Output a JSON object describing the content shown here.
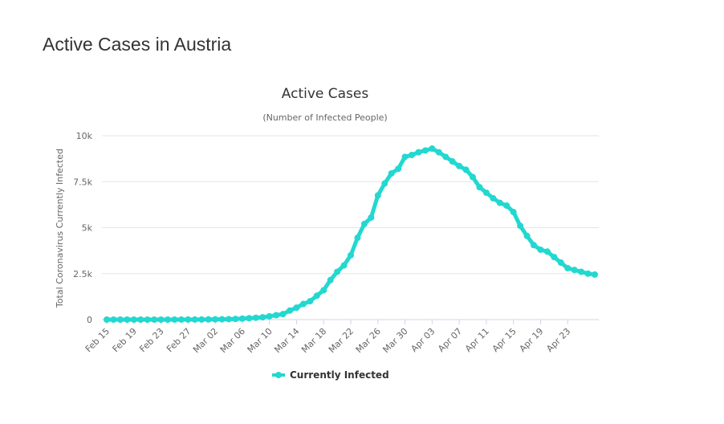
{
  "page_title": "Active Cases in Austria",
  "chart_data": {
    "type": "line",
    "title": "Active Cases",
    "subtitle": "(Number of Infected People)",
    "y_label": "Total Coronavirus Currently Infected",
    "categories": [
      "Feb 15",
      null,
      null,
      null,
      "Feb 19",
      null,
      null,
      null,
      "Feb 23",
      null,
      null,
      null,
      "Feb 27",
      null,
      null,
      null,
      "Mar 02",
      null,
      null,
      null,
      "Mar 06",
      null,
      null,
      null,
      "Mar 10",
      null,
      null,
      null,
      "Mar 14",
      null,
      null,
      null,
      "Mar 18",
      null,
      null,
      null,
      "Mar 22",
      null,
      null,
      null,
      "Mar 26",
      null,
      null,
      null,
      "Mar 30",
      null,
      null,
      null,
      "Apr 03",
      null,
      null,
      null,
      "Apr 07",
      null,
      null,
      null,
      "Apr 11",
      null,
      null,
      null,
      "Apr 15",
      null,
      null,
      null,
      "Apr 19",
      null,
      null,
      null,
      "Apr 23",
      null,
      null,
      null,
      null
    ],
    "series": [
      {
        "name": "Currently Infected",
        "color": "#22d8d0",
        "values": [
          0,
          0,
          0,
          0,
          0,
          0,
          0,
          0,
          0,
          0,
          2,
          2,
          3,
          3,
          5,
          9,
          14,
          18,
          24,
          37,
          55,
          77,
          99,
          128,
          180,
          240,
          300,
          490,
          650,
          850,
          1000,
          1300,
          1600,
          2150,
          2600,
          2950,
          3500,
          4450,
          5200,
          5550,
          6750,
          7400,
          7950,
          8200,
          8850,
          8950,
          9100,
          9200,
          9300,
          9100,
          8850,
          8600,
          8350,
          8150,
          7750,
          7200,
          6900,
          6600,
          6350,
          6200,
          5850,
          5100,
          4550,
          4050,
          3800,
          3700,
          3400,
          3100,
          2800,
          2700,
          2600,
          2500,
          2450
        ]
      }
    ],
    "ylim": [
      0,
      10000
    ],
    "yticks": [
      0,
      {
        "value": 2500,
        "label": "2.5k"
      },
      {
        "value": 5000,
        "label": "5k"
      },
      {
        "value": 7500,
        "label": "7.5k"
      },
      {
        "value": 10000,
        "label": "10k"
      }
    ],
    "grid": true
  }
}
